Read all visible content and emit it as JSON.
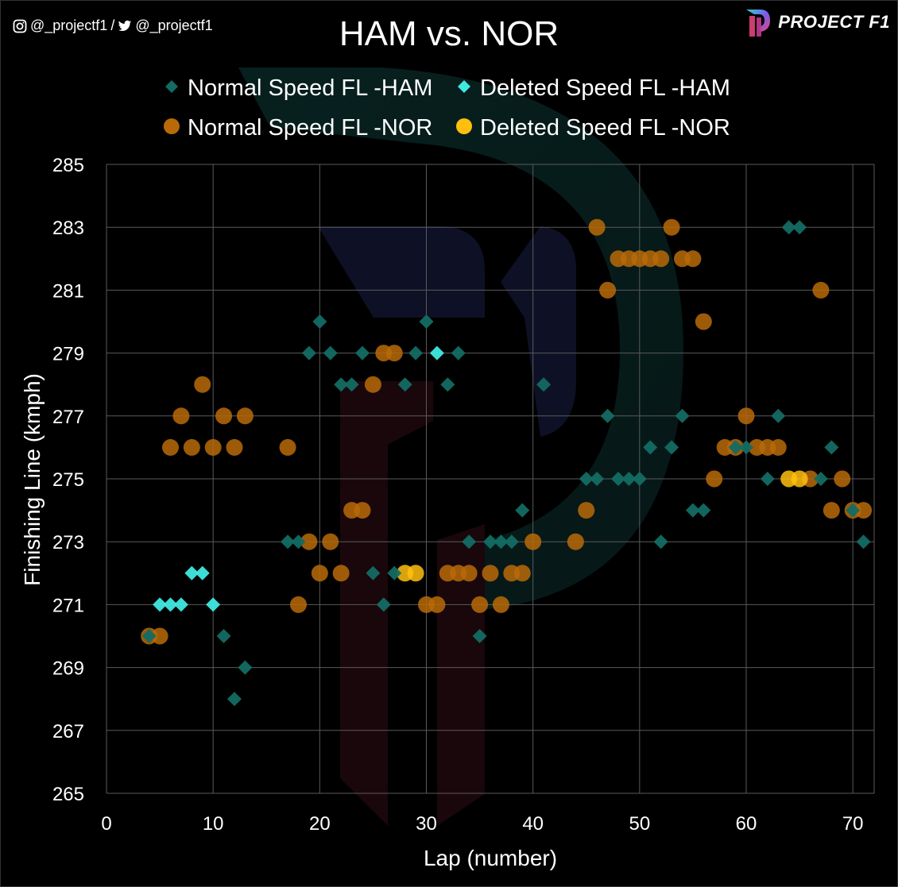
{
  "header": {
    "social_handles": [
      "@_projectf1",
      "/",
      "@_projectf1"
    ],
    "brand_name": "PROJECT F1"
  },
  "colors": {
    "ham_normal": "#136b63",
    "ham_deleted": "#40e8e0",
    "nor_normal": "#b86a08",
    "nor_deleted": "#ffbf0f",
    "grid": "#5a5a5a",
    "background": "#000000"
  },
  "chart_data": {
    "type": "scatter",
    "title": "HAM vs. NOR",
    "xlabel": "Lap (number)",
    "ylabel": "Finishing Line (kmph)",
    "xlim": [
      0,
      72
    ],
    "ylim": [
      265,
      285
    ],
    "x_ticks": [
      0,
      10,
      20,
      30,
      40,
      50,
      60,
      70
    ],
    "y_ticks": [
      265,
      267,
      269,
      271,
      273,
      275,
      277,
      279,
      281,
      283,
      285
    ],
    "grid": true,
    "legend_position": "top",
    "series": [
      {
        "name": "Normal Speed FL -HAM",
        "marker": "diamond",
        "color": "#136b63",
        "points": [
          [
            4,
            270
          ],
          [
            11,
            270
          ],
          [
            12,
            268
          ],
          [
            13,
            269
          ],
          [
            17,
            273
          ],
          [
            18,
            273
          ],
          [
            19,
            279
          ],
          [
            20,
            280
          ],
          [
            21,
            279
          ],
          [
            22,
            278
          ],
          [
            23,
            278
          ],
          [
            24,
            279
          ],
          [
            25,
            272
          ],
          [
            26,
            271
          ],
          [
            27,
            272
          ],
          [
            28,
            278
          ],
          [
            29,
            279
          ],
          [
            30,
            280
          ],
          [
            32,
            278
          ],
          [
            33,
            279
          ],
          [
            34,
            273
          ],
          [
            35,
            270
          ],
          [
            36,
            273
          ],
          [
            37,
            273
          ],
          [
            38,
            273
          ],
          [
            39,
            274
          ],
          [
            41,
            278
          ],
          [
            45,
            275
          ],
          [
            46,
            275
          ],
          [
            47,
            277
          ],
          [
            48,
            275
          ],
          [
            49,
            275
          ],
          [
            50,
            275
          ],
          [
            51,
            276
          ],
          [
            52,
            273
          ],
          [
            53,
            276
          ],
          [
            54,
            277
          ],
          [
            55,
            274
          ],
          [
            56,
            274
          ],
          [
            59,
            276
          ],
          [
            60,
            276
          ],
          [
            62,
            275
          ],
          [
            63,
            277
          ],
          [
            64,
            283
          ],
          [
            65,
            283
          ],
          [
            67,
            275
          ],
          [
            68,
            276
          ],
          [
            70,
            274
          ],
          [
            71,
            273
          ]
        ]
      },
      {
        "name": "Deleted Speed FL -HAM",
        "marker": "diamond",
        "color": "#40e8e0",
        "points": [
          [
            5,
            271
          ],
          [
            6,
            271
          ],
          [
            7,
            271
          ],
          [
            8,
            272
          ],
          [
            9,
            272
          ],
          [
            10,
            271
          ],
          [
            31,
            279
          ]
        ]
      },
      {
        "name": "Normal Speed FL -NOR",
        "marker": "circle",
        "color": "#b86a08",
        "points": [
          [
            4,
            270
          ],
          [
            5,
            270
          ],
          [
            6,
            276
          ],
          [
            7,
            277
          ],
          [
            8,
            276
          ],
          [
            9,
            278
          ],
          [
            10,
            276
          ],
          [
            11,
            277
          ],
          [
            12,
            276
          ],
          [
            13,
            277
          ],
          [
            17,
            276
          ],
          [
            18,
            271
          ],
          [
            19,
            273
          ],
          [
            20,
            272
          ],
          [
            21,
            273
          ],
          [
            22,
            272
          ],
          [
            23,
            274
          ],
          [
            24,
            274
          ],
          [
            25,
            278
          ],
          [
            26,
            279
          ],
          [
            27,
            279
          ],
          [
            30,
            271
          ],
          [
            31,
            271
          ],
          [
            32,
            272
          ],
          [
            33,
            272
          ],
          [
            34,
            272
          ],
          [
            35,
            271
          ],
          [
            36,
            272
          ],
          [
            37,
            271
          ],
          [
            38,
            272
          ],
          [
            39,
            272
          ],
          [
            40,
            273
          ],
          [
            44,
            273
          ],
          [
            45,
            274
          ],
          [
            46,
            283
          ],
          [
            47,
            281
          ],
          [
            48,
            282
          ],
          [
            49,
            282
          ],
          [
            50,
            282
          ],
          [
            51,
            282
          ],
          [
            52,
            282
          ],
          [
            53,
            283
          ],
          [
            54,
            282
          ],
          [
            55,
            282
          ],
          [
            56,
            280
          ],
          [
            57,
            275
          ],
          [
            58,
            276
          ],
          [
            59,
            276
          ],
          [
            60,
            277
          ],
          [
            61,
            276
          ],
          [
            62,
            276
          ],
          [
            63,
            276
          ],
          [
            66,
            275
          ],
          [
            68,
            274
          ],
          [
            69,
            275
          ],
          [
            70,
            274
          ],
          [
            71,
            274
          ],
          [
            67,
            281
          ]
        ]
      },
      {
        "name": "Deleted Speed FL -NOR",
        "marker": "circle",
        "color": "#ffbf0f",
        "points": [
          [
            28,
            272
          ],
          [
            29,
            272
          ],
          [
            64,
            275
          ],
          [
            65,
            275
          ]
        ]
      }
    ]
  }
}
